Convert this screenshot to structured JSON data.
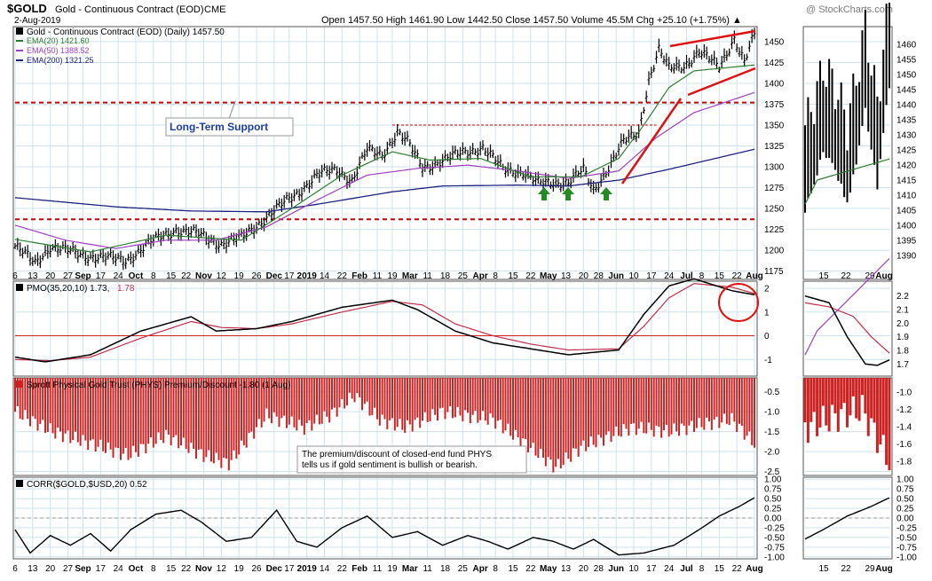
{
  "header": {
    "symbol": "$GOLD",
    "name": "Gold - Continuous Contract (EOD)",
    "exchange": "CME",
    "date": "2-Aug-2019",
    "ohlc": "Open 1457.50  High 1461.90  Low 1442.50  Close 1457.50  Volume 45.5M  Chg +25.10 (+1.75%) ▲",
    "watermark": "@ StockCharts.com"
  },
  "legend": {
    "main": "Gold - Continuous Contract (EOD) (Daily) 1457.50",
    "ema20": "EMA(20) 1421.60",
    "ema50": "EMA(50) 1388.52",
    "ema200": "EMA(200) 1321.25",
    "pmo": "PMO(35,20,10) 1.73,",
    "pmo_signal": "1.78",
    "phys": "Sprott Physical Gold Trust (PHYS) Premium/Discount -1.80 (1 Aug)",
    "corr": "CORR($GOLD,$USD,20) 0.52"
  },
  "annotations": {
    "support": "Long-Term Support",
    "phys_note_1": "The premium/discount of closed-end fund PHYS",
    "phys_note_2": "tells us if gold sentiment is bullish or bearish."
  },
  "colors": {
    "price_bar": "#000000",
    "ema20": "#2e7d32",
    "ema50": "#a040c0",
    "ema200": "#1a237e",
    "pmo": "#000000",
    "pmo_signal": "#c0304a",
    "phys_bars": "#cc2222",
    "support_line": "#cc0000",
    "grid": "#cfe3ee",
    "arrow": "#228b22"
  },
  "chart_data": [
    {
      "type": "ohlc",
      "panel": "price",
      "ylim": [
        1165,
        1468
      ],
      "yticks": [
        1175,
        1200,
        1225,
        1250,
        1275,
        1300,
        1325,
        1350,
        1375,
        1400,
        1425,
        1450
      ],
      "x_labels": [
        "6",
        "13",
        "20",
        "27",
        "Sep",
        "17",
        "24",
        "Oct",
        "8",
        "15",
        "22",
        "Nov",
        "12",
        "19",
        "26",
        "Dec",
        "17",
        "2019",
        "14",
        "22",
        "Feb",
        "11",
        "19",
        "Mar",
        "11",
        "18",
        "25",
        "Apr",
        "8",
        "15",
        "22",
        "May",
        "13",
        "20",
        "28",
        "Jun",
        "10",
        "17",
        "24",
        "Jul",
        "8",
        "15",
        "22",
        "Aug"
      ],
      "anchors": [
        [
          0,
          1205
        ],
        [
          8,
          1185
        ],
        [
          14,
          1205
        ],
        [
          26,
          1195
        ],
        [
          34,
          1192
        ],
        [
          44,
          1188
        ],
        [
          54,
          1210
        ],
        [
          64,
          1225
        ],
        [
          72,
          1220
        ],
        [
          82,
          1208
        ],
        [
          90,
          1215
        ],
        [
          98,
          1235
        ],
        [
          104,
          1250
        ],
        [
          112,
          1268
        ],
        [
          120,
          1290
        ],
        [
          128,
          1297
        ],
        [
          134,
          1284
        ],
        [
          140,
          1320
        ],
        [
          146,
          1315
        ],
        [
          152,
          1342
        ],
        [
          156,
          1330
        ],
        [
          162,
          1300
        ],
        [
          170,
          1307
        ],
        [
          178,
          1318
        ],
        [
          186,
          1323
        ],
        [
          194,
          1298
        ],
        [
          202,
          1294
        ],
        [
          208,
          1280
        ],
        [
          214,
          1282
        ],
        [
          220,
          1282
        ],
        [
          226,
          1296
        ],
        [
          230,
          1272
        ],
        [
          236,
          1300
        ],
        [
          242,
          1330
        ],
        [
          248,
          1342
        ],
        [
          252,
          1405
        ],
        [
          256,
          1440
        ],
        [
          260,
          1418
        ],
        [
          266,
          1422
        ],
        [
          272,
          1438
        ],
        [
          280,
          1420
        ],
        [
          286,
          1455
        ],
        [
          290,
          1425
        ],
        [
          294,
          1458
        ]
      ],
      "ema20": [
        [
          0,
          1213
        ],
        [
          30,
          1198
        ],
        [
          60,
          1218
        ],
        [
          90,
          1212
        ],
        [
          110,
          1250
        ],
        [
          130,
          1290
        ],
        [
          150,
          1318
        ],
        [
          165,
          1308
        ],
        [
          185,
          1310
        ],
        [
          205,
          1288
        ],
        [
          225,
          1288
        ],
        [
          240,
          1310
        ],
        [
          250,
          1350
        ],
        [
          260,
          1395
        ],
        [
          270,
          1415
        ],
        [
          294,
          1422
        ]
      ],
      "ema50": [
        [
          0,
          1230
        ],
        [
          20,
          1212
        ],
        [
          40,
          1202
        ],
        [
          60,
          1212
        ],
        [
          80,
          1212
        ],
        [
          100,
          1228
        ],
        [
          120,
          1260
        ],
        [
          140,
          1290
        ],
        [
          160,
          1298
        ],
        [
          180,
          1302
        ],
        [
          200,
          1295
        ],
        [
          220,
          1286
        ],
        [
          240,
          1295
        ],
        [
          255,
          1335
        ],
        [
          270,
          1365
        ],
        [
          294,
          1389
        ]
      ],
      "ema200": [
        [
          0,
          1263
        ],
        [
          40,
          1252
        ],
        [
          70,
          1247
        ],
        [
          100,
          1246
        ],
        [
          120,
          1255
        ],
        [
          150,
          1270
        ],
        [
          170,
          1277
        ],
        [
          200,
          1278
        ],
        [
          220,
          1277
        ],
        [
          240,
          1284
        ],
        [
          260,
          1297
        ],
        [
          294,
          1321
        ]
      ],
      "support_levels": [
        1237,
        1377
      ],
      "resistance_level": 1350
    },
    {
      "type": "line",
      "panel": "pmo",
      "ylim": [
        -1.7,
        2.3
      ],
      "yticks": [
        -1,
        0,
        1,
        2
      ],
      "series": [
        {
          "name": "PMO(35,20,10)",
          "values": [
            [
              0,
              -0.9
            ],
            [
              12,
              -1.1
            ],
            [
              30,
              -0.8
            ],
            [
              50,
              0.2
            ],
            [
              70,
              0.8
            ],
            [
              80,
              0.2
            ],
            [
              96,
              0.3
            ],
            [
              110,
              0.6
            ],
            [
              130,
              1.2
            ],
            [
              150,
              1.5
            ],
            [
              160,
              1.1
            ],
            [
              175,
              0.2
            ],
            [
              190,
              -0.3
            ],
            [
              205,
              -0.55
            ],
            [
              220,
              -0.8
            ],
            [
              240,
              -0.6
            ],
            [
              250,
              0.9
            ],
            [
              260,
              2.1
            ],
            [
              270,
              2.4
            ],
            [
              285,
              1.9
            ],
            [
              294,
              1.73
            ]
          ]
        },
        {
          "name": "signal",
          "values": [
            [
              0,
              -1.0
            ],
            [
              14,
              -1.05
            ],
            [
              30,
              -0.9
            ],
            [
              50,
              -0.1
            ],
            [
              70,
              0.6
            ],
            [
              82,
              0.35
            ],
            [
              96,
              0.3
            ],
            [
              110,
              0.5
            ],
            [
              130,
              1.0
            ],
            [
              150,
              1.45
            ],
            [
              162,
              1.3
            ],
            [
              175,
              0.5
            ],
            [
              190,
              0.0
            ],
            [
              205,
              -0.35
            ],
            [
              220,
              -0.6
            ],
            [
              240,
              -0.55
            ],
            [
              250,
              0.4
            ],
            [
              260,
              1.6
            ],
            [
              270,
              2.2
            ],
            [
              285,
              2.05
            ],
            [
              294,
              1.78
            ]
          ]
        }
      ]
    },
    {
      "type": "bar",
      "panel": "phys_premium_discount",
      "ylim": [
        -2.6,
        -0.15
      ],
      "yticks": [
        -0.5,
        -1.0,
        -1.5,
        -2.0,
        -2.5
      ],
      "value_anchors": [
        [
          0,
          -1.0
        ],
        [
          15,
          -1.5
        ],
        [
          30,
          -1.8
        ],
        [
          45,
          -2.1
        ],
        [
          60,
          -1.6
        ],
        [
          75,
          -2.1
        ],
        [
          85,
          -2.3
        ],
        [
          100,
          -1.1
        ],
        [
          115,
          -1.4
        ],
        [
          125,
          -1.1
        ],
        [
          135,
          -0.6
        ],
        [
          145,
          -1.2
        ],
        [
          155,
          -1.4
        ],
        [
          170,
          -1.0
        ],
        [
          190,
          -1.2
        ],
        [
          205,
          -1.9
        ],
        [
          215,
          -2.4
        ],
        [
          225,
          -1.9
        ],
        [
          245,
          -1.4
        ],
        [
          260,
          -1.5
        ],
        [
          275,
          -1.3
        ],
        [
          285,
          -1.2
        ],
        [
          294,
          -1.8
        ]
      ]
    },
    {
      "type": "line",
      "panel": "correlation",
      "ylim": [
        -1.05,
        1.05
      ],
      "yticks": [
        1.0,
        0.75,
        0.5,
        0.25,
        0.0,
        -0.25,
        -0.5,
        -0.75,
        -1.0
      ],
      "series": [
        {
          "name": "CORR($GOLD,$USD,20)",
          "values": [
            [
              0,
              -0.3
            ],
            [
              6,
              -0.9
            ],
            [
              14,
              -0.45
            ],
            [
              22,
              -0.7
            ],
            [
              30,
              -0.4
            ],
            [
              38,
              -0.85
            ],
            [
              46,
              -0.3
            ],
            [
              56,
              0.1
            ],
            [
              66,
              0.2
            ],
            [
              74,
              -0.1
            ],
            [
              84,
              -0.6
            ],
            [
              94,
              -0.5
            ],
            [
              104,
              0.2
            ],
            [
              112,
              -0.6
            ],
            [
              120,
              -0.75
            ],
            [
              130,
              -0.25
            ],
            [
              140,
              0.05
            ],
            [
              150,
              -0.5
            ],
            [
              160,
              -0.35
            ],
            [
              170,
              -0.7
            ],
            [
              180,
              -0.45
            ],
            [
              188,
              -0.6
            ],
            [
              196,
              -0.8
            ],
            [
              206,
              -0.5
            ],
            [
              214,
              -0.6
            ],
            [
              222,
              -0.8
            ],
            [
              230,
              -0.55
            ],
            [
              240,
              -0.95
            ],
            [
              250,
              -0.9
            ],
            [
              262,
              -0.7
            ],
            [
              272,
              -0.3
            ],
            [
              280,
              0.05
            ],
            [
              288,
              0.3
            ],
            [
              294,
              0.52
            ]
          ]
        }
      ]
    }
  ]
}
